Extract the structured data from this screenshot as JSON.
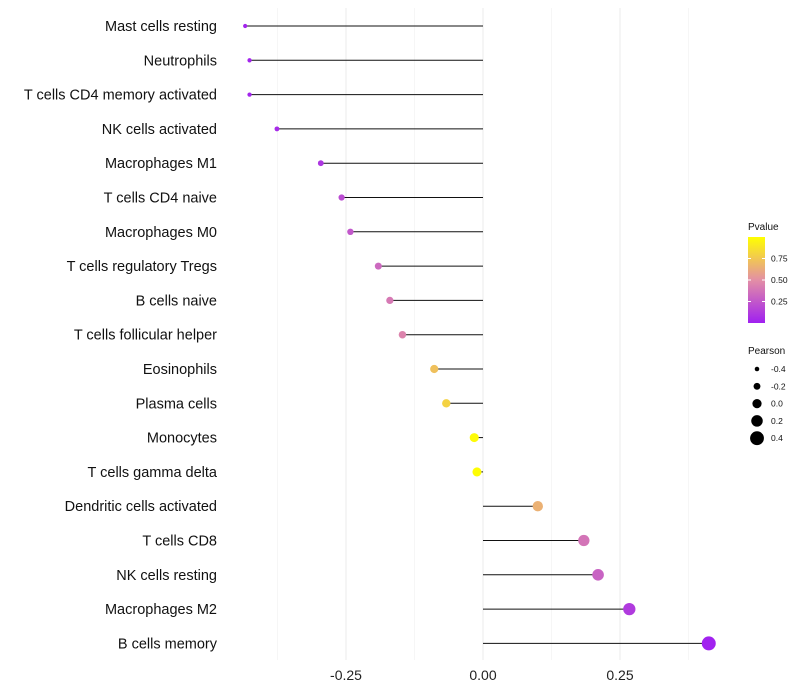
{
  "chart_data": {
    "type": "lollipop",
    "xlabel": "",
    "ylabel": "",
    "xlim": [
      -0.44,
      0.43
    ],
    "xticks": [
      -0.25,
      0.0,
      0.25
    ],
    "xtick_labels": [
      "-0.25",
      "0.00",
      "0.25"
    ],
    "grid": "vertical major and minor",
    "categories": [
      "Mast cells resting",
      "Neutrophils",
      "T cells CD4 memory activated",
      "NK cells activated",
      "Macrophages M1",
      "T cells CD4 naive",
      "Macrophages M0",
      "T cells regulatory  Tregs",
      "B cells naive",
      "T cells follicular helper",
      "Eosinophils",
      "Plasma cells",
      "Monocytes",
      "T cells gamma delta",
      "Dendritic cells activated",
      "T cells CD8",
      "NK cells resting",
      "Macrophages M2",
      "B cells memory"
    ],
    "values": [
      -0.434,
      -0.426,
      -0.426,
      -0.376,
      -0.296,
      -0.258,
      -0.242,
      -0.191,
      -0.17,
      -0.147,
      -0.089,
      -0.067,
      -0.016,
      -0.011,
      0.1,
      0.184,
      0.21,
      0.267,
      0.412
    ],
    "pvalues": [
      0.02,
      0.02,
      0.02,
      0.05,
      0.1,
      0.2,
      0.25,
      0.33,
      0.4,
      0.45,
      0.72,
      0.8,
      0.98,
      0.99,
      0.65,
      0.38,
      0.3,
      0.12,
      0.01
    ],
    "color_legend": {
      "title": "Pvalue",
      "ticks": [
        "0.75",
        "0.50",
        "0.25"
      ],
      "tick_values": [
        0.75,
        0.5,
        0.25
      ],
      "range": [
        0.0,
        1.0
      ],
      "low_color": "#a020f0",
      "mid_color": "#e38fa5",
      "high_color": "#ffff00"
    },
    "size_legend": {
      "title": "Pearson",
      "labels": [
        "-0.4",
        "-0.2",
        "0.0",
        "0.2",
        "0.4"
      ],
      "values": [
        -0.4,
        -0.2,
        0.0,
        0.2,
        0.4
      ]
    }
  }
}
